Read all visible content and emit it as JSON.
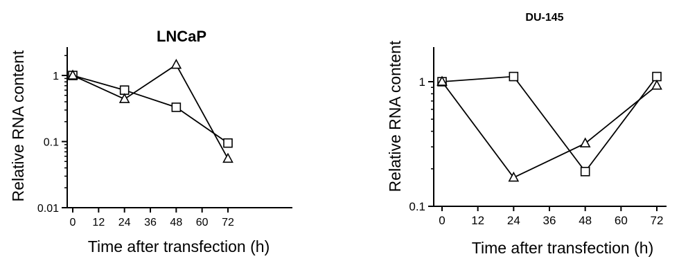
{
  "chart_data": [
    {
      "type": "line",
      "title": "LNCaP",
      "xlabel": "Time after transfection (h)",
      "ylabel": "Relative RNA content",
      "x_ticks": [
        0,
        12,
        24,
        36,
        48,
        60,
        72
      ],
      "x_tick_labels": [
        "0",
        "12",
        "24",
        "36",
        "48",
        "60",
        "72"
      ],
      "xlim": [
        0,
        78
      ],
      "y_scale": "log",
      "ylim": [
        0.01,
        2
      ],
      "y_ticks": [
        0.01,
        0.1,
        1
      ],
      "y_tick_labels": [
        "0.01",
        "0.1",
        "1"
      ],
      "grid": false,
      "series": [
        {
          "marker": "square",
          "x": [
            0,
            24,
            48,
            72
          ],
          "y": [
            1,
            0.6,
            0.33,
            0.095
          ]
        },
        {
          "marker": "triangle",
          "x": [
            0,
            24,
            48,
            72
          ],
          "y": [
            1,
            0.44,
            1.45,
            0.055
          ]
        }
      ]
    },
    {
      "type": "line",
      "title": "DU-145",
      "xlabel": "Time after transfection (h)",
      "ylabel": "Relative RNA content",
      "x_ticks": [
        0,
        12,
        24,
        36,
        48,
        60,
        72
      ],
      "x_tick_labels": [
        "0",
        "12",
        "24",
        "36",
        "48",
        "60",
        "72"
      ],
      "xlim": [
        0,
        78
      ],
      "y_scale": "log",
      "ylim": [
        0.1,
        2
      ],
      "y_ticks": [
        0.1,
        1
      ],
      "y_tick_labels": [
        "0.1",
        "1"
      ],
      "grid": false,
      "series": [
        {
          "marker": "square",
          "x": [
            0,
            24,
            48,
            72
          ],
          "y": [
            1,
            1.1,
            0.19,
            1.1
          ]
        },
        {
          "marker": "triangle",
          "x": [
            0,
            24,
            48,
            72
          ],
          "y": [
            1,
            0.17,
            0.32,
            0.93
          ]
        }
      ]
    }
  ]
}
